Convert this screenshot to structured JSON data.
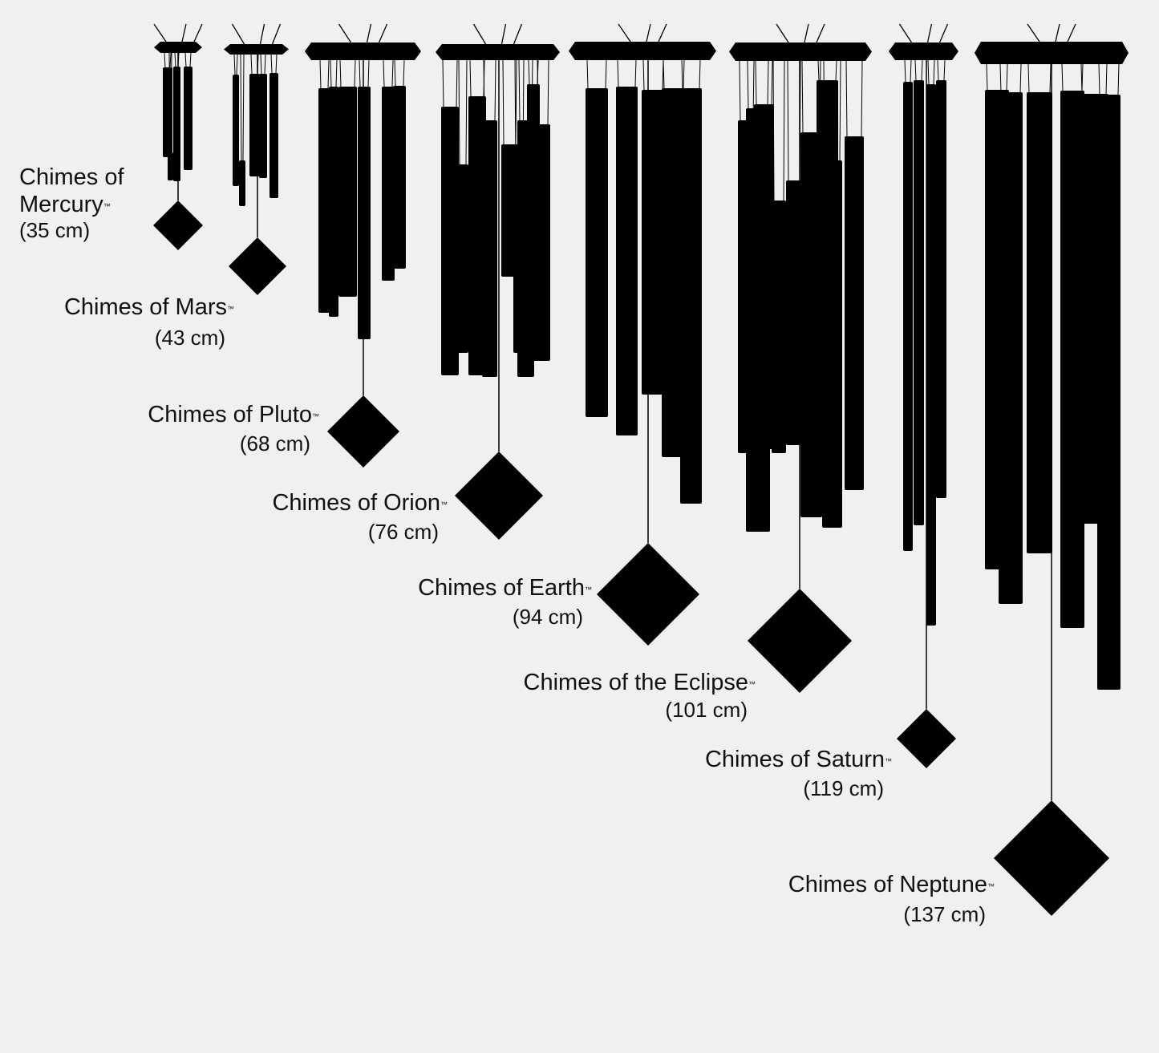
{
  "background_color": "#f0f0f0",
  "silhouette_color": "#000000",
  "chimes": [
    {
      "id": "mercury",
      "name": "Chimes of Mercury",
      "tm": "™",
      "size": "(35 cm)"
    },
    {
      "id": "mars",
      "name": "Chimes of Mars",
      "tm": "™",
      "size": "(43 cm)"
    },
    {
      "id": "pluto",
      "name": "Chimes of Pluto",
      "tm": "™",
      "size": "(68 cm)"
    },
    {
      "id": "orion",
      "name": "Chimes of Orion",
      "tm": "™",
      "size": "(76 cm)"
    },
    {
      "id": "earth",
      "name": "Chimes of Earth",
      "tm": "™",
      "size": "(94 cm)"
    },
    {
      "id": "eclipse",
      "name": "Chimes of the Eclipse",
      "tm": "™",
      "size": "(101 cm)"
    },
    {
      "id": "saturn",
      "name": "Chimes of Saturn",
      "tm": "™",
      "size": "(119 cm)"
    },
    {
      "id": "neptune",
      "name": "Chimes of Neptune",
      "tm": "™",
      "size": "(137 cm)"
    }
  ]
}
